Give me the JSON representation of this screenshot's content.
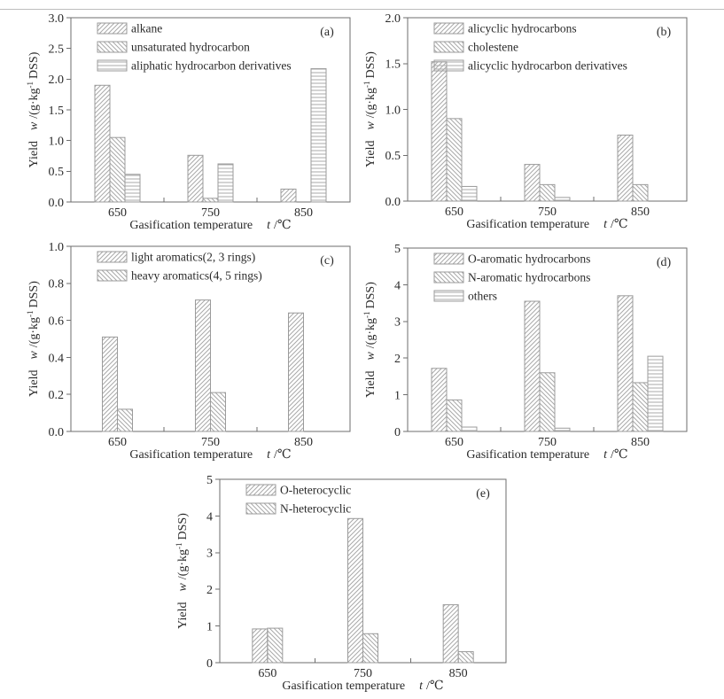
{
  "figure": {
    "background": "#ffffff",
    "top_rule_color": "#bdbdbd"
  },
  "colors": {
    "frame": "#6e6e6e",
    "text": "#2a2a2a",
    "bar_stroke": "#9b9b9b",
    "hatch": "#a9a9a9"
  },
  "axis_labels": {
    "y_word": "Yield",
    "y_symbol": "w",
    "y_unit_open": "/(g·kg",
    "y_exponent": "-1",
    "y_unit_close": "DSS)",
    "x_word": "Gasification temperature",
    "x_symbol": "t",
    "x_unit": "/℃"
  },
  "chart_data": [
    {
      "id": "a",
      "type": "bar",
      "panel_label": "(a)",
      "xlabel": "Gasification temperature t /℃",
      "ylabel": "Yield w /(g·kg⁻¹ DSS)",
      "categories": [
        "650",
        "750",
        "850"
      ],
      "ylim": [
        0,
        3.0
      ],
      "ytick_labels": [
        "0.0",
        "0.5",
        "1.0",
        "1.5",
        "2.0",
        "2.5",
        "3.0"
      ],
      "legend_position": "top-left",
      "grid": false,
      "series": [
        {
          "name": "alkane",
          "hatch": "diagonal-forward",
          "values": [
            1.9,
            0.76,
            0.21
          ]
        },
        {
          "name": "unsaturated hydrocarbon",
          "hatch": "diagonal-back",
          "values": [
            1.05,
            0.06,
            0
          ]
        },
        {
          "name": "aliphatic hydrocarbon derivatives",
          "hatch": "horizontal",
          "values": [
            0.45,
            0.62,
            2.17
          ]
        }
      ]
    },
    {
      "id": "b",
      "type": "bar",
      "panel_label": "(b)",
      "xlabel": "Gasification temperature t /℃",
      "ylabel": "Yield w /(g·kg⁻¹ DSS)",
      "categories": [
        "650",
        "750",
        "850"
      ],
      "ylim": [
        0,
        2.0
      ],
      "ytick_labels": [
        "0.0",
        "0.5",
        "1.0",
        "1.5",
        "2.0"
      ],
      "legend_position": "top-left",
      "grid": false,
      "series": [
        {
          "name": "alicyclic hydrocarbons",
          "hatch": "diagonal-forward",
          "values": [
            1.52,
            0.4,
            0.72
          ]
        },
        {
          "name": "cholestene",
          "hatch": "diagonal-back",
          "values": [
            0.9,
            0.18,
            0.18
          ]
        },
        {
          "name": "alicyclic hydrocarbon derivatives",
          "hatch": "horizontal",
          "values": [
            0.16,
            0.04,
            0
          ]
        }
      ]
    },
    {
      "id": "c",
      "type": "bar",
      "panel_label": "(c)",
      "xlabel": "Gasification temperature t /℃",
      "ylabel": "Yield w /(g·kg⁻¹ DSS)",
      "categories": [
        "650",
        "750",
        "850"
      ],
      "ylim": [
        0,
        1.0
      ],
      "ytick_labels": [
        "0.0",
        "0.2",
        "0.4",
        "0.6",
        "0.8",
        "1.0"
      ],
      "legend_position": "top-left",
      "grid": false,
      "series": [
        {
          "name": "light aromatics(2, 3 rings)",
          "hatch": "diagonal-forward",
          "values": [
            0.51,
            0.71,
            0.64
          ]
        },
        {
          "name": "heavy aromatics(4, 5 rings)",
          "hatch": "diagonal-back",
          "values": [
            0.12,
            0.21,
            0
          ]
        }
      ]
    },
    {
      "id": "d",
      "type": "bar",
      "panel_label": "(d)",
      "xlabel": "Gasification temperature t /℃",
      "ylabel": "Yield w /(g·kg⁻¹ DSS)",
      "categories": [
        "650",
        "750",
        "850"
      ],
      "ylim": [
        0,
        5
      ],
      "ytick_labels": [
        "0",
        "1",
        "2",
        "3",
        "4",
        "5"
      ],
      "legend_position": "top-left",
      "grid": false,
      "series": [
        {
          "name": "O-aromatic hydrocarbons",
          "hatch": "diagonal-forward",
          "values": [
            1.72,
            3.55,
            3.7
          ]
        },
        {
          "name": "N-aromatic hydrocarbons",
          "hatch": "diagonal-back",
          "values": [
            0.86,
            1.6,
            1.33
          ]
        },
        {
          "name": "others",
          "hatch": "horizontal",
          "values": [
            0.12,
            0.09,
            2.05
          ]
        }
      ]
    },
    {
      "id": "e",
      "type": "bar",
      "panel_label": "(e)",
      "xlabel": "Gasification temperature t /℃",
      "ylabel": "Yield w /(g·kg⁻¹ DSS)",
      "categories": [
        "650",
        "750",
        "850"
      ],
      "ylim": [
        0,
        5
      ],
      "ytick_labels": [
        "0",
        "1",
        "2",
        "3",
        "4",
        "5"
      ],
      "legend_position": "top-left",
      "grid": false,
      "series": [
        {
          "name": "O-heterocyclic",
          "hatch": "diagonal-forward",
          "values": [
            0.92,
            3.93,
            1.58
          ]
        },
        {
          "name": "N-heterocyclic",
          "hatch": "diagonal-back",
          "values": [
            0.94,
            0.79,
            0.3
          ]
        }
      ]
    }
  ]
}
